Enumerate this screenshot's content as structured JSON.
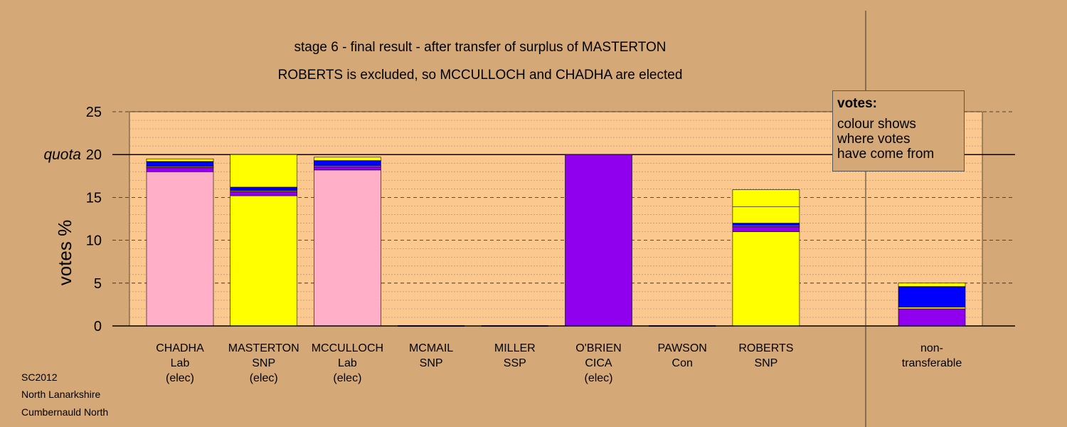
{
  "colors": {
    "background": "#d4a877",
    "plot_area": "#fbc88f",
    "Lab": "#ffb0c8",
    "SNP": "#ffff00",
    "CICA": "#9000ee",
    "Con": "#0000ff"
  },
  "legend": {
    "title": "votes:",
    "lines": [
      "colour shows",
      "where votes",
      "have come from"
    ]
  },
  "footer": [
    "SC2012",
    "North Lanarkshire",
    "Cumbernauld North"
  ],
  "chart_data": {
    "type": "bar",
    "stacked": true,
    "title": "stage 6 - final result - after transfer of surplus of MASTERTON",
    "subtitle": "ROBERTS is excluded, so MCCULLOCH and CHADHA are elected",
    "ylabel": "votes %",
    "ylim": [
      0,
      25
    ],
    "yticks": [
      0,
      5,
      10,
      15,
      20,
      25
    ],
    "quota": 20,
    "quota_label": "quota",
    "grid": true,
    "candidates": [
      {
        "name": "CHADHA",
        "party": "Lab",
        "status": "(elec)",
        "segments": [
          {
            "from": "Lab",
            "value": 18.0
          },
          {
            "from": "CICA",
            "value": 0.5
          },
          {
            "from": "SNP",
            "value": 0.1
          },
          {
            "from": "Con",
            "value": 0.6
          },
          {
            "from": "SNP",
            "value": 0.3
          }
        ]
      },
      {
        "name": "MASTERTON",
        "party": "SNP",
        "status": "(elec)",
        "segments": [
          {
            "from": "SNP",
            "value": 15.2
          },
          {
            "from": "CICA",
            "value": 0.5
          },
          {
            "from": "SNP",
            "value": 0.1
          },
          {
            "from": "Con",
            "value": 0.4
          },
          {
            "from": "SNP",
            "value": 3.8
          }
        ]
      },
      {
        "name": "MCCULLOCH",
        "party": "Lab",
        "status": "(elec)",
        "segments": [
          {
            "from": "Lab",
            "value": 18.2
          },
          {
            "from": "CICA",
            "value": 0.4
          },
          {
            "from": "SNP",
            "value": 0.1
          },
          {
            "from": "Con",
            "value": 0.6
          },
          {
            "from": "SNP",
            "value": 0.4
          }
        ]
      },
      {
        "name": "MCMAIL",
        "party": "SNP",
        "status": "",
        "segments": []
      },
      {
        "name": "MILLER",
        "party": "SSP",
        "status": "",
        "segments": []
      },
      {
        "name": "O'BRIEN",
        "party": "CICA",
        "status": "(elec)",
        "segments": [
          {
            "from": "CICA",
            "value": 20.0
          }
        ]
      },
      {
        "name": "PAWSON",
        "party": "Con",
        "status": "",
        "segments": []
      },
      {
        "name": "ROBERTS",
        "party": "SNP",
        "status": "",
        "segments": [
          {
            "from": "SNP",
            "value": 11.0
          },
          {
            "from": "CICA",
            "value": 0.6
          },
          {
            "from": "SNP",
            "value": 0.1
          },
          {
            "from": "Con",
            "value": 0.3
          },
          {
            "from": "SNP",
            "value": 1.9
          },
          {
            "from": "SNP",
            "value": 2.0
          }
        ]
      }
    ],
    "nontransferable": {
      "label_lines": [
        "non-",
        "transferable"
      ],
      "segments": [
        {
          "from": "CICA",
          "value": 2.0
        },
        {
          "from": "SNP",
          "value": 0.2
        },
        {
          "from": "Con",
          "value": 2.4
        },
        {
          "from": "SNP",
          "value": 0.4
        }
      ]
    }
  }
}
